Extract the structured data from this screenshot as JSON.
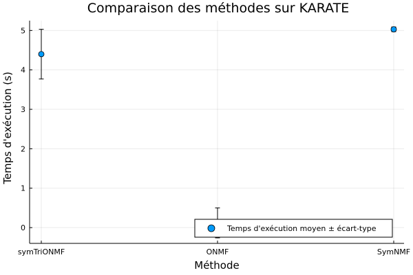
{
  "chart_data": {
    "type": "scatter",
    "title": "Comparaison des méthodes sur KARATE",
    "xlabel": "Méthode",
    "ylabel": "Temps d'exécution (s)",
    "categories": [
      "symTriONMF",
      "ONMF",
      "SymNMF"
    ],
    "ylim": [
      -0.4,
      5.25
    ],
    "yticks": [
      0,
      1,
      2,
      3,
      4,
      5
    ],
    "grid": true,
    "legend_position": "bottom-right",
    "series": [
      {
        "name": "Temps d'exécution moyen ± écart-type",
        "color": "#009AFA",
        "values": [
          4.4,
          0.12,
          5.03
        ],
        "errors": [
          0.63,
          0.38,
          0.06
        ]
      }
    ]
  }
}
